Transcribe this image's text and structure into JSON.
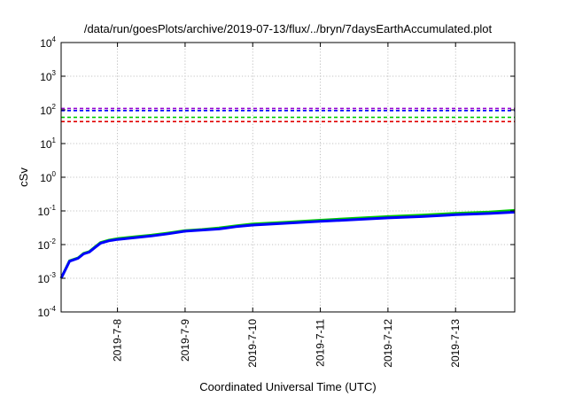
{
  "chart_data": {
    "type": "line",
    "title": "/data/run/goesPlots/archive/2019-07-13/flux/../bryn/7daysEarthAccumulated.plot",
    "xlabel": "Coordinated Universal Time (UTC)",
    "ylabel": "cSv",
    "y_scale": "log",
    "ylim": [
      0.0001,
      10000
    ],
    "x_start": "2019-07-07T04:00",
    "x_end": "2019-07-13T21:00",
    "grid": true,
    "y_ticks": [
      {
        "value": 0.0001,
        "base": "10",
        "exp": "-4"
      },
      {
        "value": 0.001,
        "base": "10",
        "exp": "-3"
      },
      {
        "value": 0.01,
        "base": "10",
        "exp": "-2"
      },
      {
        "value": 0.1,
        "base": "10",
        "exp": "-1"
      },
      {
        "value": 1,
        "base": "10",
        "exp": "0"
      },
      {
        "value": 10,
        "base": "10",
        "exp": "1"
      },
      {
        "value": 100,
        "base": "10",
        "exp": "2"
      },
      {
        "value": 1000,
        "base": "10",
        "exp": "3"
      },
      {
        "value": 10000,
        "base": "10",
        "exp": "4"
      }
    ],
    "x_ticks": [
      {
        "value": "2019-07-08T00:00",
        "label": "2019-7-8"
      },
      {
        "value": "2019-07-09T00:00",
        "label": "2019-7-9"
      },
      {
        "value": "2019-07-10T00:00",
        "label": "2019-7-10"
      },
      {
        "value": "2019-07-11T00:00",
        "label": "2019-7-11"
      },
      {
        "value": "2019-07-12T00:00",
        "label": "2019-7-12"
      },
      {
        "value": "2019-07-13T00:00",
        "label": "2019-7-13"
      }
    ],
    "reference_lines": [
      {
        "y": 110,
        "color": "#9400d3"
      },
      {
        "y": 95,
        "color": "#0000ff"
      },
      {
        "y": 60,
        "color": "#00cc00"
      },
      {
        "y": 45,
        "color": "#e00000"
      }
    ],
    "series": [
      {
        "color": "#00cc00",
        "points": [
          {
            "x": "2019-07-07T04:00",
            "y": 0.001
          },
          {
            "x": "2019-07-07T07:00",
            "y": 0.0033
          },
          {
            "x": "2019-07-07T10:00",
            "y": 0.004
          },
          {
            "x": "2019-07-07T12:00",
            "y": 0.0055
          },
          {
            "x": "2019-07-07T14:00",
            "y": 0.0062
          },
          {
            "x": "2019-07-07T16:00",
            "y": 0.0085
          },
          {
            "x": "2019-07-07T18:00",
            "y": 0.0115
          },
          {
            "x": "2019-07-07T21:00",
            "y": 0.0135
          },
          {
            "x": "2019-07-08T00:00",
            "y": 0.015
          },
          {
            "x": "2019-07-08T06:00",
            "y": 0.017
          },
          {
            "x": "2019-07-08T12:00",
            "y": 0.019
          },
          {
            "x": "2019-07-08T18:00",
            "y": 0.022
          },
          {
            "x": "2019-07-09T00:00",
            "y": 0.026
          },
          {
            "x": "2019-07-09T06:00",
            "y": 0.028
          },
          {
            "x": "2019-07-09T12:00",
            "y": 0.031
          },
          {
            "x": "2019-07-09T18:00",
            "y": 0.036
          },
          {
            "x": "2019-07-10T00:00",
            "y": 0.041
          },
          {
            "x": "2019-07-10T12:00",
            "y": 0.046
          },
          {
            "x": "2019-07-11T00:00",
            "y": 0.053
          },
          {
            "x": "2019-07-11T12:00",
            "y": 0.06
          },
          {
            "x": "2019-07-12T00:00",
            "y": 0.068
          },
          {
            "x": "2019-07-12T12:00",
            "y": 0.075
          },
          {
            "x": "2019-07-13T00:00",
            "y": 0.085
          },
          {
            "x": "2019-07-13T12:00",
            "y": 0.093
          },
          {
            "x": "2019-07-13T21:00",
            "y": 0.104
          }
        ]
      },
      {
        "color": "#0000ff",
        "points": [
          {
            "x": "2019-07-07T04:00",
            "y": 0.001
          },
          {
            "x": "2019-07-07T07:00",
            "y": 0.0032
          },
          {
            "x": "2019-07-07T10:00",
            "y": 0.0039
          },
          {
            "x": "2019-07-07T12:00",
            "y": 0.0053
          },
          {
            "x": "2019-07-07T14:00",
            "y": 0.006
          },
          {
            "x": "2019-07-07T16:00",
            "y": 0.0082
          },
          {
            "x": "2019-07-07T18:00",
            "y": 0.011
          },
          {
            "x": "2019-07-07T21:00",
            "y": 0.013
          },
          {
            "x": "2019-07-08T00:00",
            "y": 0.0142
          },
          {
            "x": "2019-07-08T06:00",
            "y": 0.016
          },
          {
            "x": "2019-07-08T12:00",
            "y": 0.018
          },
          {
            "x": "2019-07-08T18:00",
            "y": 0.021
          },
          {
            "x": "2019-07-09T00:00",
            "y": 0.025
          },
          {
            "x": "2019-07-09T06:00",
            "y": 0.027
          },
          {
            "x": "2019-07-09T12:00",
            "y": 0.029
          },
          {
            "x": "2019-07-09T18:00",
            "y": 0.034
          },
          {
            "x": "2019-07-10T00:00",
            "y": 0.038
          },
          {
            "x": "2019-07-10T12:00",
            "y": 0.043
          },
          {
            "x": "2019-07-11T00:00",
            "y": 0.049
          },
          {
            "x": "2019-07-11T12:00",
            "y": 0.055
          },
          {
            "x": "2019-07-12T00:00",
            "y": 0.062
          },
          {
            "x": "2019-07-12T12:00",
            "y": 0.068
          },
          {
            "x": "2019-07-13T00:00",
            "y": 0.077
          },
          {
            "x": "2019-07-13T12:00",
            "y": 0.084
          },
          {
            "x": "2019-07-13T21:00",
            "y": 0.092
          }
        ]
      }
    ]
  }
}
